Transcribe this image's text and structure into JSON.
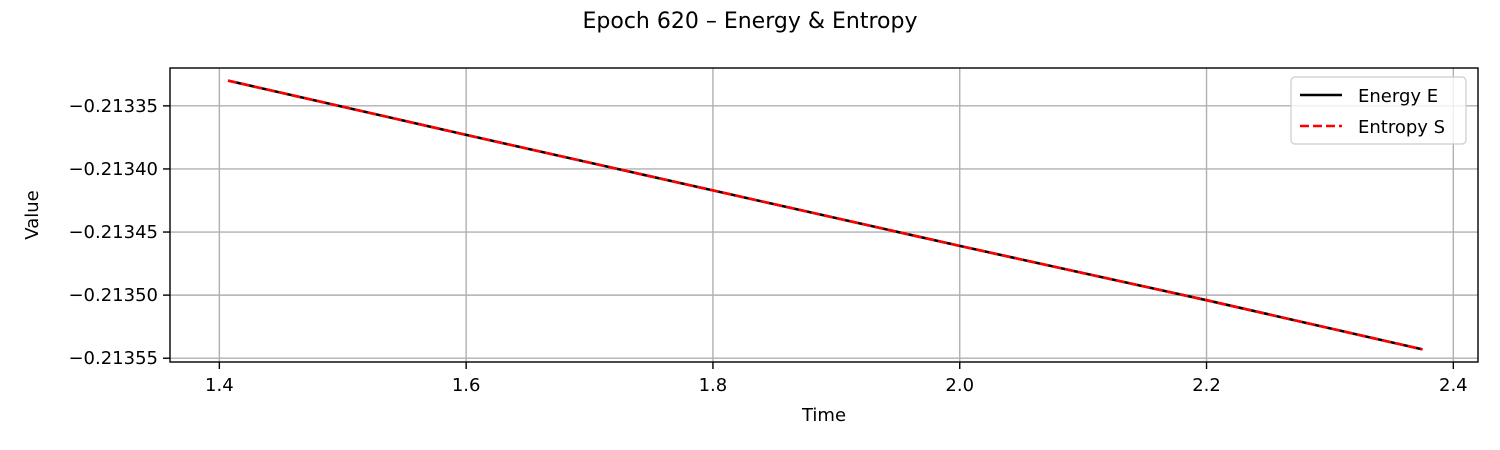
{
  "chart_data": {
    "type": "line",
    "title": "Epoch 620 – Energy & Entropy",
    "xlabel": "Time",
    "ylabel": "Value",
    "xlim": [
      1.36,
      2.42
    ],
    "ylim": [
      -0.213553,
      -0.21332
    ],
    "x_ticks": [
      1.4,
      1.6,
      1.8,
      2.0,
      2.2,
      2.4
    ],
    "x_tick_labels": [
      "1.4",
      "1.6",
      "1.8",
      "2.0",
      "2.2",
      "2.4"
    ],
    "y_ticks": [
      -0.21335,
      -0.2134,
      -0.21345,
      -0.2135,
      -0.21355
    ],
    "y_tick_labels": [
      "−0.21335",
      "−0.21340",
      "−0.21345",
      "−0.21350",
      "−0.21355"
    ],
    "grid": true,
    "legend_position": "top-right",
    "series": [
      {
        "name": "Energy E",
        "color": "#000000",
        "style": "solid",
        "x": [
          1.407,
          1.6,
          1.8,
          2.0,
          2.2,
          2.375
        ],
        "y": [
          -0.21333,
          -0.213373,
          -0.213417,
          -0.213461,
          -0.213504,
          -0.213543
        ]
      },
      {
        "name": "Entropy S",
        "color": "#ff0000",
        "style": "dashed",
        "x": [
          1.407,
          1.6,
          1.8,
          2.0,
          2.2,
          2.375
        ],
        "y": [
          -0.21333,
          -0.213373,
          -0.213417,
          -0.213461,
          -0.213504,
          -0.213543
        ]
      }
    ]
  }
}
